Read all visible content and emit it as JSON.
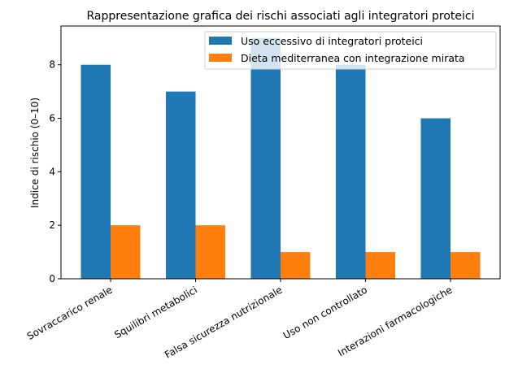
{
  "chart_data": {
    "type": "bar",
    "title": "Rappresentazione grafica dei rischi associati agli integratori proteici",
    "xlabel": "",
    "ylabel": "Indice di rischio (0–10)",
    "ylim": [
      0,
      9.45
    ],
    "yticks": [
      0,
      2,
      4,
      6,
      8
    ],
    "grid": false,
    "legend": "top-right",
    "categories": [
      "Sovraccarico renale",
      "Squilibri metabolici",
      "Falsa sicurezza nutrizionale",
      "Uso non controllato",
      "Interazioni farmacologiche"
    ],
    "series": [
      {
        "name": "Uso eccessivo di integratori proteici",
        "values": [
          8,
          7,
          9,
          8,
          6
        ],
        "color": "#1f77b4"
      },
      {
        "name": "Dieta mediterranea con integrazione mirata",
        "values": [
          2,
          2,
          1,
          1,
          1
        ],
        "color": "#ff7f0e"
      }
    ]
  }
}
